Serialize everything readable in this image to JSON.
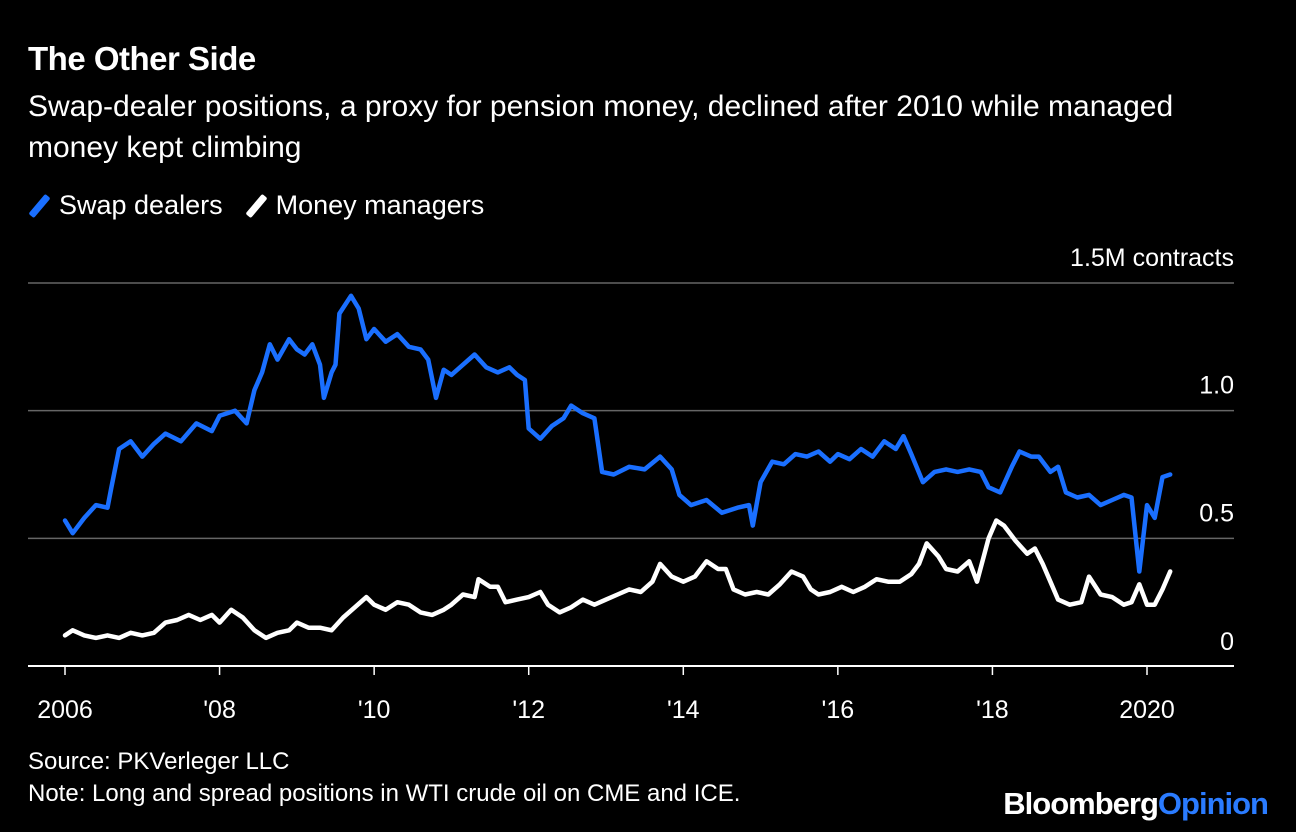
{
  "chart_data": {
    "type": "line",
    "title": "The Other Side",
    "subtitle": "Swap-dealer positions, a proxy for pension money, declined after 2010 while managed money kept climbing",
    "ylabel": "1.5M contracts",
    "ylim": [
      0,
      1.5
    ],
    "xlim": [
      2006,
      2021
    ],
    "y_ticks": [
      {
        "v": 0,
        "label": "0"
      },
      {
        "v": 0.5,
        "label": "0.5"
      },
      {
        "v": 1.0,
        "label": "1.0"
      },
      {
        "v": 1.5,
        "label": "1.5M contracts"
      }
    ],
    "x_ticks": [
      {
        "v": 2006,
        "label": "2006"
      },
      {
        "v": 2008,
        "label": "'08"
      },
      {
        "v": 2010,
        "label": "'10"
      },
      {
        "v": 2012,
        "label": "'12"
      },
      {
        "v": 2014,
        "label": "'14"
      },
      {
        "v": 2016,
        "label": "'16"
      },
      {
        "v": 2018,
        "label": "'18"
      },
      {
        "v": 2020,
        "label": "2020"
      }
    ],
    "grid": true,
    "legend_position": "top-left",
    "series": [
      {
        "name": "Swap dealers",
        "color": "#1a6fff",
        "points": [
          [
            2006.0,
            0.57
          ],
          [
            2006.1,
            0.52
          ],
          [
            2006.25,
            0.58
          ],
          [
            2006.4,
            0.63
          ],
          [
            2006.55,
            0.62
          ],
          [
            2006.6,
            0.7
          ],
          [
            2006.7,
            0.85
          ],
          [
            2006.85,
            0.88
          ],
          [
            2007.0,
            0.82
          ],
          [
            2007.15,
            0.87
          ],
          [
            2007.3,
            0.91
          ],
          [
            2007.5,
            0.88
          ],
          [
            2007.7,
            0.95
          ],
          [
            2007.9,
            0.92
          ],
          [
            2008.0,
            0.98
          ],
          [
            2008.2,
            1.0
          ],
          [
            2008.35,
            0.95
          ],
          [
            2008.45,
            1.08
          ],
          [
            2008.55,
            1.15
          ],
          [
            2008.65,
            1.26
          ],
          [
            2008.75,
            1.2
          ],
          [
            2008.9,
            1.28
          ],
          [
            2009.0,
            1.24
          ],
          [
            2009.1,
            1.22
          ],
          [
            2009.2,
            1.26
          ],
          [
            2009.3,
            1.18
          ],
          [
            2009.35,
            1.05
          ],
          [
            2009.45,
            1.15
          ],
          [
            2009.5,
            1.18
          ],
          [
            2009.55,
            1.38
          ],
          [
            2009.7,
            1.45
          ],
          [
            2009.8,
            1.4
          ],
          [
            2009.9,
            1.28
          ],
          [
            2010.0,
            1.32
          ],
          [
            2010.15,
            1.27
          ],
          [
            2010.3,
            1.3
          ],
          [
            2010.45,
            1.25
          ],
          [
            2010.6,
            1.24
          ],
          [
            2010.7,
            1.2
          ],
          [
            2010.8,
            1.05
          ],
          [
            2010.9,
            1.16
          ],
          [
            2011.0,
            1.14
          ],
          [
            2011.15,
            1.18
          ],
          [
            2011.3,
            1.22
          ],
          [
            2011.45,
            1.17
          ],
          [
            2011.6,
            1.15
          ],
          [
            2011.75,
            1.17
          ],
          [
            2011.85,
            1.14
          ],
          [
            2011.95,
            1.12
          ],
          [
            2012.0,
            0.93
          ],
          [
            2012.15,
            0.89
          ],
          [
            2012.3,
            0.94
          ],
          [
            2012.45,
            0.97
          ],
          [
            2012.55,
            1.02
          ],
          [
            2012.7,
            0.99
          ],
          [
            2012.85,
            0.97
          ],
          [
            2012.95,
            0.76
          ],
          [
            2013.1,
            0.75
          ],
          [
            2013.3,
            0.78
          ],
          [
            2013.5,
            0.77
          ],
          [
            2013.7,
            0.82
          ],
          [
            2013.85,
            0.77
          ],
          [
            2013.95,
            0.67
          ],
          [
            2014.1,
            0.63
          ],
          [
            2014.3,
            0.65
          ],
          [
            2014.5,
            0.6
          ],
          [
            2014.7,
            0.62
          ],
          [
            2014.85,
            0.63
          ],
          [
            2014.9,
            0.55
          ],
          [
            2015.0,
            0.72
          ],
          [
            2015.15,
            0.8
          ],
          [
            2015.3,
            0.79
          ],
          [
            2015.45,
            0.83
          ],
          [
            2015.6,
            0.82
          ],
          [
            2015.75,
            0.84
          ],
          [
            2015.9,
            0.8
          ],
          [
            2016.0,
            0.83
          ],
          [
            2016.15,
            0.81
          ],
          [
            2016.3,
            0.85
          ],
          [
            2016.45,
            0.82
          ],
          [
            2016.6,
            0.88
          ],
          [
            2016.75,
            0.85
          ],
          [
            2016.85,
            0.9
          ],
          [
            2016.95,
            0.83
          ],
          [
            2017.1,
            0.72
          ],
          [
            2017.25,
            0.76
          ],
          [
            2017.4,
            0.77
          ],
          [
            2017.55,
            0.76
          ],
          [
            2017.7,
            0.77
          ],
          [
            2017.85,
            0.76
          ],
          [
            2017.95,
            0.7
          ],
          [
            2018.1,
            0.68
          ],
          [
            2018.25,
            0.78
          ],
          [
            2018.35,
            0.84
          ],
          [
            2018.5,
            0.82
          ],
          [
            2018.6,
            0.82
          ],
          [
            2018.75,
            0.76
          ],
          [
            2018.85,
            0.78
          ],
          [
            2018.95,
            0.68
          ],
          [
            2019.1,
            0.66
          ],
          [
            2019.25,
            0.67
          ],
          [
            2019.4,
            0.63
          ],
          [
            2019.55,
            0.65
          ],
          [
            2019.7,
            0.67
          ],
          [
            2019.8,
            0.66
          ],
          [
            2019.9,
            0.37
          ],
          [
            2020.0,
            0.63
          ],
          [
            2020.1,
            0.58
          ],
          [
            2020.2,
            0.74
          ],
          [
            2020.3,
            0.75
          ]
        ]
      },
      {
        "name": "Money managers",
        "color": "#ffffff",
        "points": [
          [
            2006.0,
            0.12
          ],
          [
            2006.1,
            0.14
          ],
          [
            2006.25,
            0.12
          ],
          [
            2006.4,
            0.11
          ],
          [
            2006.55,
            0.12
          ],
          [
            2006.7,
            0.11
          ],
          [
            2006.85,
            0.13
          ],
          [
            2007.0,
            0.12
          ],
          [
            2007.15,
            0.13
          ],
          [
            2007.3,
            0.17
          ],
          [
            2007.45,
            0.18
          ],
          [
            2007.6,
            0.2
          ],
          [
            2007.75,
            0.18
          ],
          [
            2007.9,
            0.2
          ],
          [
            2008.0,
            0.17
          ],
          [
            2008.15,
            0.22
          ],
          [
            2008.3,
            0.19
          ],
          [
            2008.45,
            0.14
          ],
          [
            2008.6,
            0.11
          ],
          [
            2008.75,
            0.13
          ],
          [
            2008.9,
            0.14
          ],
          [
            2009.0,
            0.17
          ],
          [
            2009.15,
            0.15
          ],
          [
            2009.3,
            0.15
          ],
          [
            2009.45,
            0.14
          ],
          [
            2009.6,
            0.19
          ],
          [
            2009.75,
            0.23
          ],
          [
            2009.9,
            0.27
          ],
          [
            2010.0,
            0.24
          ],
          [
            2010.15,
            0.22
          ],
          [
            2010.3,
            0.25
          ],
          [
            2010.45,
            0.24
          ],
          [
            2010.6,
            0.21
          ],
          [
            2010.75,
            0.2
          ],
          [
            2010.9,
            0.22
          ],
          [
            2011.0,
            0.24
          ],
          [
            2011.15,
            0.28
          ],
          [
            2011.3,
            0.27
          ],
          [
            2011.35,
            0.34
          ],
          [
            2011.5,
            0.31
          ],
          [
            2011.6,
            0.31
          ],
          [
            2011.7,
            0.25
          ],
          [
            2011.85,
            0.26
          ],
          [
            2012.0,
            0.27
          ],
          [
            2012.15,
            0.29
          ],
          [
            2012.25,
            0.24
          ],
          [
            2012.4,
            0.21
          ],
          [
            2012.55,
            0.23
          ],
          [
            2012.7,
            0.26
          ],
          [
            2012.85,
            0.24
          ],
          [
            2013.0,
            0.26
          ],
          [
            2013.15,
            0.28
          ],
          [
            2013.3,
            0.3
          ],
          [
            2013.45,
            0.29
          ],
          [
            2013.6,
            0.33
          ],
          [
            2013.7,
            0.4
          ],
          [
            2013.85,
            0.35
          ],
          [
            2014.0,
            0.33
          ],
          [
            2014.15,
            0.35
          ],
          [
            2014.3,
            0.41
          ],
          [
            2014.45,
            0.38
          ],
          [
            2014.55,
            0.38
          ],
          [
            2014.65,
            0.3
          ],
          [
            2014.8,
            0.28
          ],
          [
            2014.95,
            0.29
          ],
          [
            2015.1,
            0.28
          ],
          [
            2015.25,
            0.32
          ],
          [
            2015.4,
            0.37
          ],
          [
            2015.55,
            0.35
          ],
          [
            2015.65,
            0.3
          ],
          [
            2015.75,
            0.28
          ],
          [
            2015.9,
            0.29
          ],
          [
            2016.05,
            0.31
          ],
          [
            2016.2,
            0.29
          ],
          [
            2016.35,
            0.31
          ],
          [
            2016.5,
            0.34
          ],
          [
            2016.65,
            0.33
          ],
          [
            2016.8,
            0.33
          ],
          [
            2016.95,
            0.36
          ],
          [
            2017.05,
            0.4
          ],
          [
            2017.15,
            0.48
          ],
          [
            2017.3,
            0.43
          ],
          [
            2017.4,
            0.38
          ],
          [
            2017.55,
            0.37
          ],
          [
            2017.7,
            0.41
          ],
          [
            2017.8,
            0.33
          ],
          [
            2017.95,
            0.5
          ],
          [
            2018.05,
            0.57
          ],
          [
            2018.15,
            0.55
          ],
          [
            2018.3,
            0.49
          ],
          [
            2018.45,
            0.44
          ],
          [
            2018.55,
            0.46
          ],
          [
            2018.65,
            0.4
          ],
          [
            2018.75,
            0.33
          ],
          [
            2018.85,
            0.26
          ],
          [
            2019.0,
            0.24
          ],
          [
            2019.15,
            0.25
          ],
          [
            2019.25,
            0.35
          ],
          [
            2019.4,
            0.28
          ],
          [
            2019.55,
            0.27
          ],
          [
            2019.7,
            0.24
          ],
          [
            2019.8,
            0.25
          ],
          [
            2019.9,
            0.32
          ],
          [
            2020.0,
            0.24
          ],
          [
            2020.1,
            0.24
          ],
          [
            2020.2,
            0.3
          ],
          [
            2020.3,
            0.37
          ]
        ]
      }
    ]
  },
  "source": "Source: PKVerleger LLC",
  "note": "Note: Long and spread positions in WTI crude oil on CME and ICE.",
  "brand": {
    "first": "Bloomberg",
    "second": "Opinion"
  },
  "colors": {
    "background": "#000000",
    "grid": "#666666",
    "axis": "#ffffff",
    "brand_accent": "#2a7bff"
  }
}
